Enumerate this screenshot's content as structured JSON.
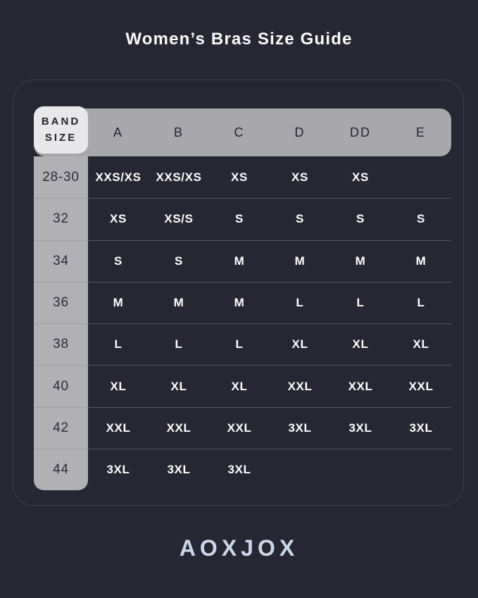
{
  "page": {
    "brand_logo": "AOXJOX"
  },
  "colors": {
    "background": "#262732",
    "card_border": "#3e3f49",
    "header_bar": "#a8a8ac",
    "band_header_cell": "#e8e8ea",
    "band_column": "#b1b1b5",
    "header_text": "#24252c",
    "cell_text": "#ffffff",
    "logo_text": "#cdd7eb"
  },
  "chart_data": {
    "type": "table",
    "title": "Women’s Bras Size Guide",
    "band_header": "BAND\nSIZE",
    "columns": [
      "A",
      "B",
      "C",
      "D",
      "DD",
      "E"
    ],
    "rows": [
      {
        "band": "28-30",
        "cells": [
          "XXS/XS",
          "XXS/XS",
          "XS",
          "XS",
          "XS",
          ""
        ]
      },
      {
        "band": "32",
        "cells": [
          "XS",
          "XS/S",
          "S",
          "S",
          "S",
          "S"
        ]
      },
      {
        "band": "34",
        "cells": [
          "S",
          "S",
          "M",
          "M",
          "M",
          "M"
        ]
      },
      {
        "band": "36",
        "cells": [
          "M",
          "M",
          "M",
          "L",
          "L",
          "L"
        ]
      },
      {
        "band": "38",
        "cells": [
          "L",
          "L",
          "L",
          "XL",
          "XL",
          "XL"
        ]
      },
      {
        "band": "40",
        "cells": [
          "XL",
          "XL",
          "XL",
          "XXL",
          "XXL",
          "XXL"
        ]
      },
      {
        "band": "42",
        "cells": [
          "XXL",
          "XXL",
          "XXL",
          "3XL",
          "3XL",
          "3XL"
        ]
      },
      {
        "band": "44",
        "cells": [
          "3XL",
          "3XL",
          "3XL",
          "",
          "",
          ""
        ]
      }
    ]
  }
}
